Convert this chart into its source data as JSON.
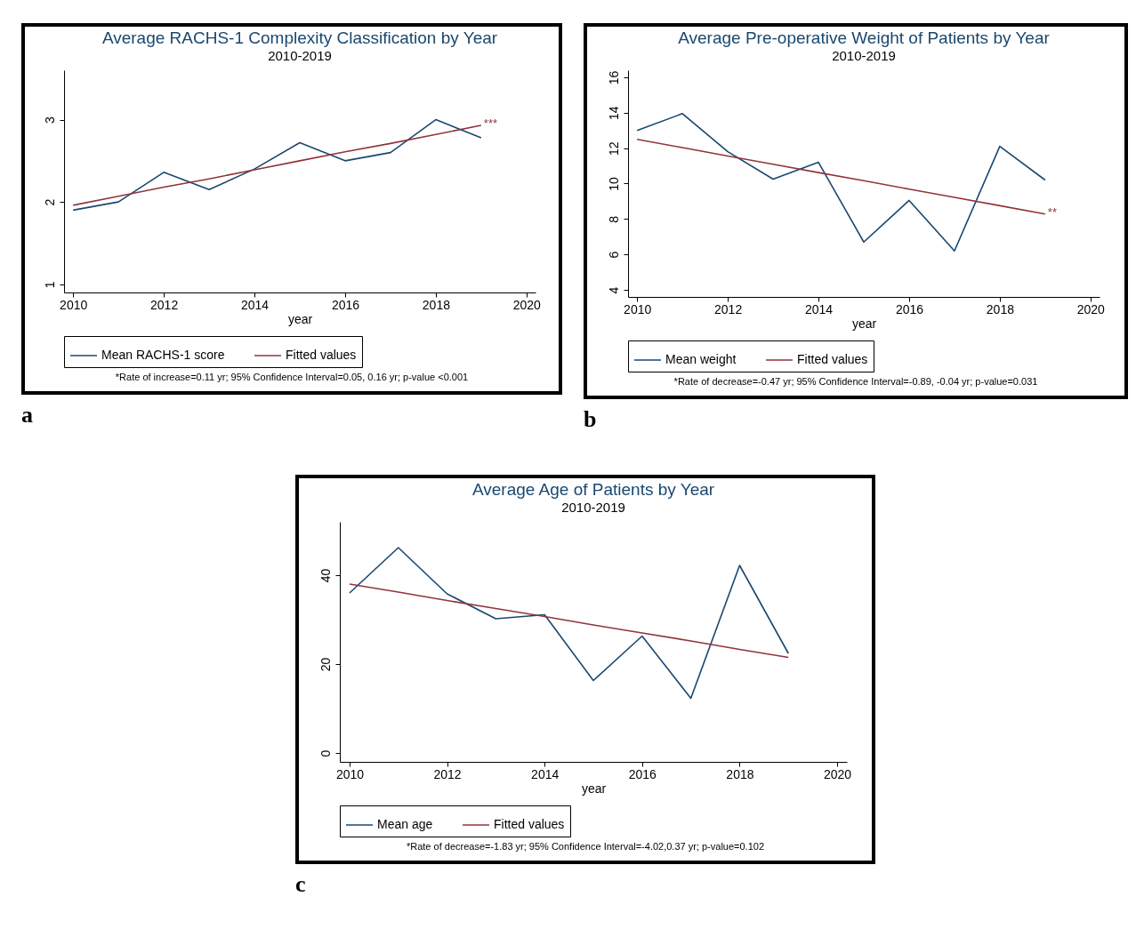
{
  "chart_data": [
    {
      "type": "line",
      "title": "Average RACHS-1 Complexity Classification by Year",
      "subtitle": "2010-2019",
      "xlabel": "year",
      "x": [
        2010,
        2011,
        2012,
        2013,
        2014,
        2015,
        2016,
        2017,
        2018,
        2019
      ],
      "series": [
        {
          "name": "Mean RACHS-1 score",
          "color": "#1a476f",
          "values": [
            1.9,
            2.0,
            2.36,
            2.15,
            2.4,
            2.72,
            2.5,
            2.6,
            3.0,
            2.78
          ]
        },
        {
          "name": "Fitted values",
          "color": "#90353b",
          "values": [
            1.96,
            2.07,
            2.18,
            2.28,
            2.39,
            2.5,
            2.61,
            2.71,
            2.82,
            2.93
          ]
        }
      ],
      "xlim": [
        2009.8,
        2020.2
      ],
      "xticks": [
        2010,
        2012,
        2014,
        2016,
        2018,
        2020
      ],
      "ylim": [
        0.9,
        3.6
      ],
      "yticks": [
        1,
        2,
        3
      ],
      "grid": false,
      "legend": "bottom",
      "annotations": [
        {
          "text": "***",
          "x": 2019,
          "y": 2.93
        },
        "*Rate of increase=0.11 yr; 95% Confidence Interval=0.05, 0.16 yr; p-value <0.001",
        "a"
      ]
    },
    {
      "type": "line",
      "title": "Average Pre-operative Weight of Patients by Year",
      "subtitle": "2010-2019",
      "xlabel": "year",
      "x": [
        2010,
        2011,
        2012,
        2013,
        2014,
        2015,
        2016,
        2017,
        2018,
        2019
      ],
      "series": [
        {
          "name": "Mean weight",
          "color": "#1a476f",
          "values": [
            13.0,
            13.95,
            11.8,
            10.25,
            11.2,
            6.7,
            9.05,
            6.2,
            12.1,
            10.2
          ]
        },
        {
          "name": "Fitted values",
          "color": "#90353b",
          "values": [
            12.5,
            12.03,
            11.56,
            11.09,
            10.62,
            10.16,
            9.69,
            9.22,
            8.75,
            8.28
          ]
        }
      ],
      "xlim": [
        2009.8,
        2020.2
      ],
      "xticks": [
        2010,
        2012,
        2014,
        2016,
        2018,
        2020
      ],
      "ylim": [
        3.6,
        16.4
      ],
      "yticks": [
        4,
        6,
        8,
        10,
        12,
        14,
        16
      ],
      "grid": false,
      "legend": "bottom",
      "annotations": [
        {
          "text": "**",
          "x": 2019,
          "y": 8.28
        },
        "*Rate of decrease=-0.47 yr; 95% Confidence Interval=-0.89, -0.04 yr; p-value=0.031",
        "b"
      ]
    },
    {
      "type": "line",
      "title": "Average Age of Patients by Year",
      "subtitle": "2010-2019",
      "xlabel": "year",
      "x": [
        2010,
        2011,
        2012,
        2013,
        2014,
        2015,
        2016,
        2017,
        2018,
        2019
      ],
      "series": [
        {
          "name": "Mean age",
          "color": "#1a476f",
          "values": [
            36,
            46.2,
            35.8,
            30.2,
            31.1,
            16.3,
            26.3,
            12.3,
            42.2,
            22.4
          ]
        },
        {
          "name": "Fitted values",
          "color": "#90353b",
          "values": [
            38.0,
            36.2,
            34.3,
            32.5,
            30.7,
            28.8,
            27.0,
            25.2,
            23.3,
            21.5
          ]
        }
      ],
      "xlim": [
        2009.8,
        2020.2
      ],
      "xticks": [
        2010,
        2012,
        2014,
        2016,
        2018,
        2020
      ],
      "ylim": [
        -2,
        52
      ],
      "yticks": [
        0,
        20,
        40
      ],
      "grid": false,
      "legend": "bottom",
      "annotations": [
        "*Rate of decrease=-1.83 yr; 95% Confidence Interval=-4.02,0.37 yr; p-value=0.102",
        "c"
      ]
    }
  ]
}
